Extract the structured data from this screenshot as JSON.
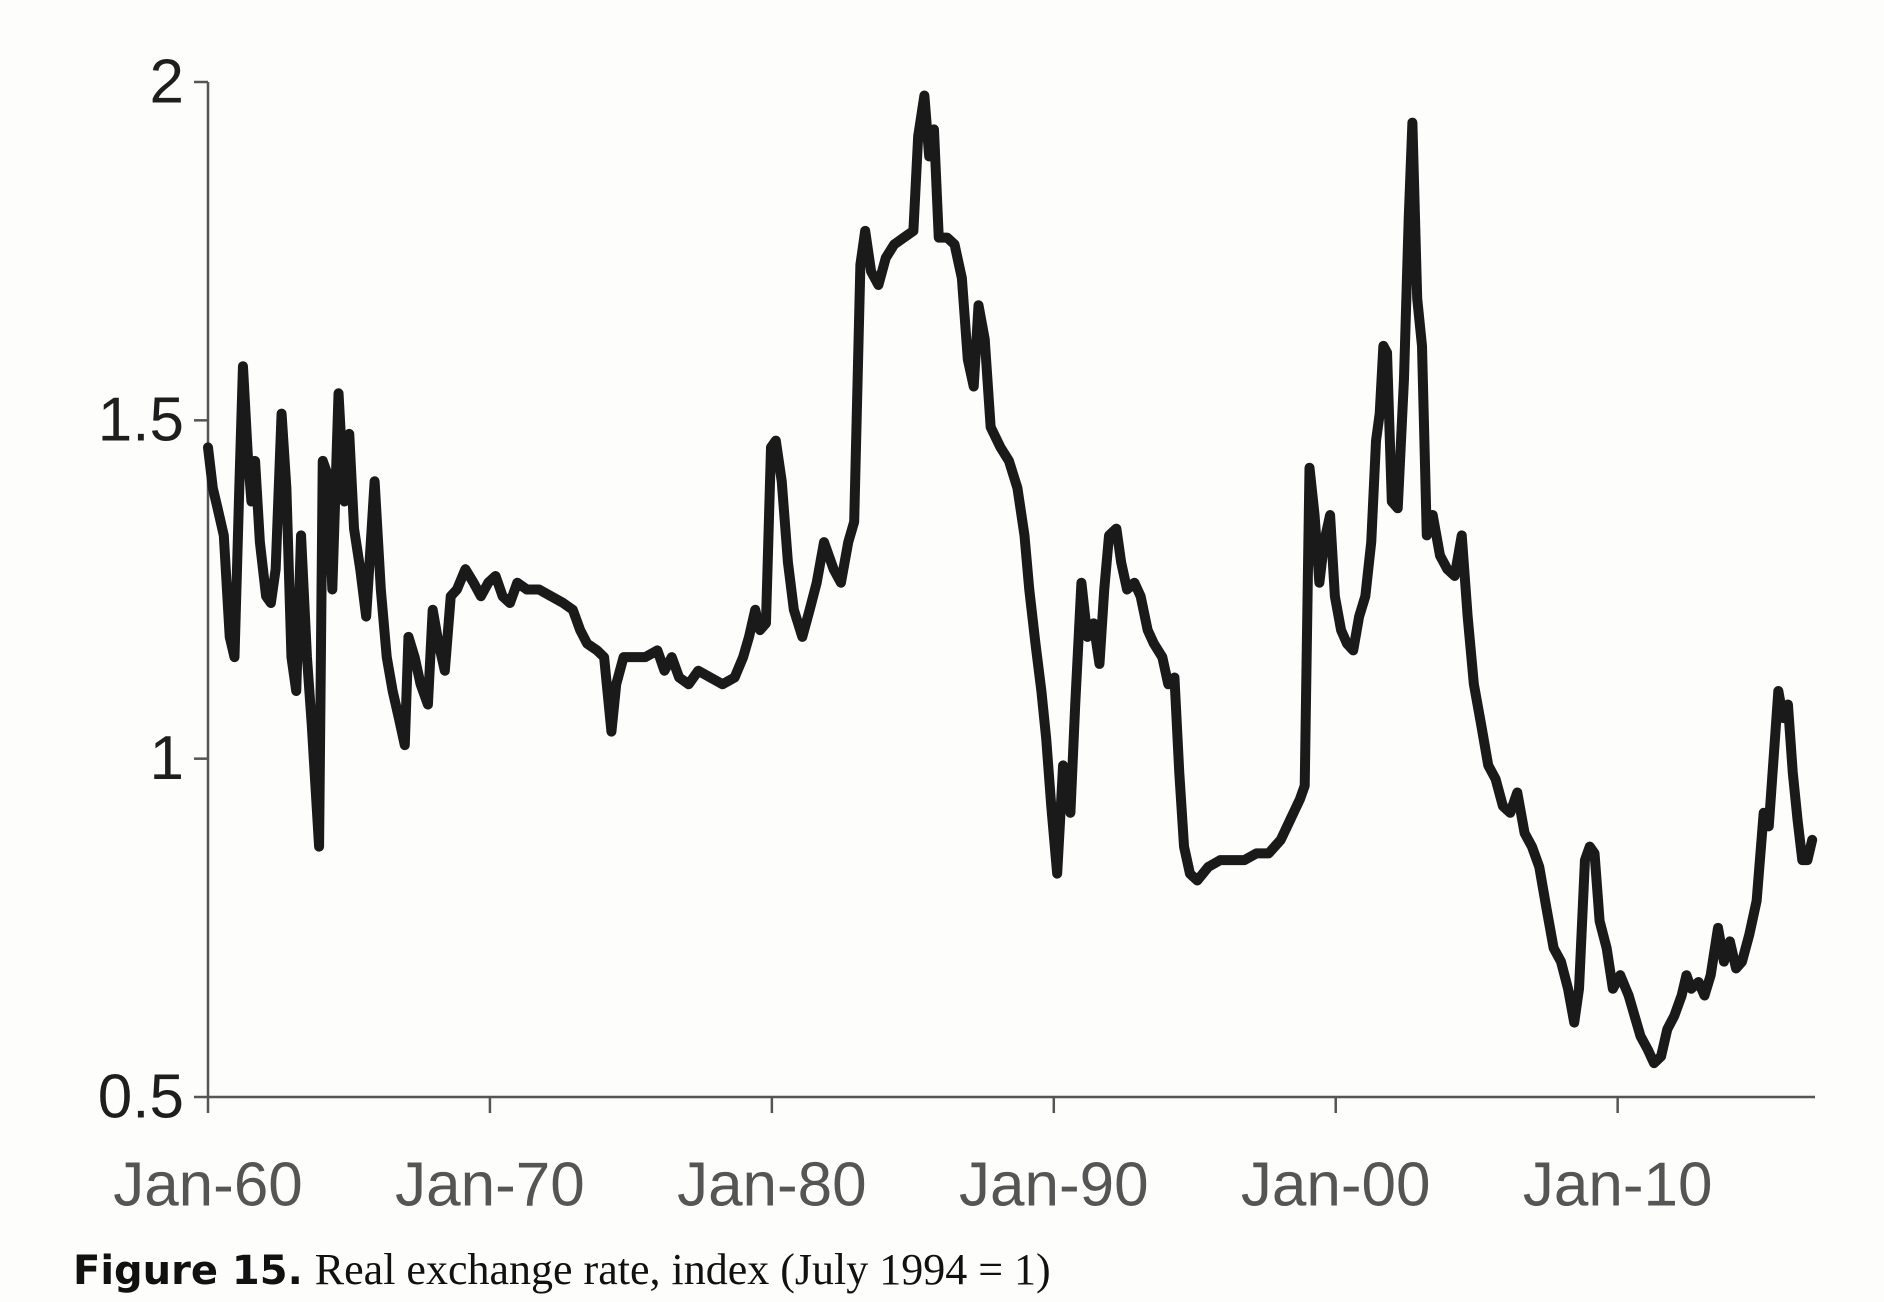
{
  "chart_data": {
    "type": "line",
    "figure_label": "Figure 15.",
    "caption": "Real exchange rate, index (July 1994 = 1)",
    "color": "#1a1a1a",
    "xlim": [
      1960,
      2017
    ],
    "ylim": [
      0.5,
      2
    ],
    "yticks": [
      0.5,
      1,
      1.5,
      2
    ],
    "xticks": [
      {
        "value": 1960,
        "label": "Jan-60"
      },
      {
        "value": 1970,
        "label": "Jan-70"
      },
      {
        "value": 1980,
        "label": "Jan-80"
      },
      {
        "value": 1990,
        "label": "Jan-90"
      },
      {
        "value": 2000,
        "label": "Jan-00"
      },
      {
        "value": 2010,
        "label": "Jan-10"
      }
    ],
    "x": [
      1960.0,
      1960.17,
      1960.34,
      1960.56,
      1960.77,
      1960.94,
      1961.11,
      1961.24,
      1961.41,
      1961.54,
      1961.67,
      1961.84,
      1962.06,
      1962.23,
      1962.4,
      1962.61,
      1962.78,
      1962.96,
      1963.13,
      1963.3,
      1963.51,
      1963.68,
      1963.94,
      1964.07,
      1964.24,
      1964.41,
      1964.63,
      1964.84,
      1965.01,
      1965.18,
      1965.4,
      1965.61,
      1965.91,
      1966.13,
      1966.34,
      1966.55,
      1966.77,
      1966.98,
      1967.11,
      1967.33,
      1967.54,
      1967.8,
      1967.97,
      1968.18,
      1968.4,
      1968.61,
      1968.83,
      1969.13,
      1969.42,
      1969.68,
      1969.94,
      1970.2,
      1970.45,
      1970.71,
      1970.97,
      1971.31,
      1971.74,
      1972.17,
      1972.6,
      1972.94,
      1973.2,
      1973.45,
      1973.8,
      1974.05,
      1974.31,
      1974.48,
      1974.74,
      1975.08,
      1975.51,
      1975.94,
      1976.19,
      1976.45,
      1976.71,
      1977.05,
      1977.39,
      1977.82,
      1978.25,
      1978.68,
      1978.98,
      1979.19,
      1979.41,
      1979.58,
      1979.79,
      1979.97,
      1980.14,
      1980.35,
      1980.57,
      1980.78,
      1981.08,
      1981.34,
      1981.59,
      1981.85,
      1982.19,
      1982.45,
      1982.71,
      1982.92,
      1983.14,
      1983.31,
      1983.52,
      1983.78,
      1984.04,
      1984.34,
      1984.68,
      1985.02,
      1985.19,
      1985.41,
      1985.58,
      1985.75,
      1985.92,
      1986.22,
      1986.48,
      1986.74,
      1986.95,
      1987.16,
      1987.33,
      1987.55,
      1987.76,
      1988.11,
      1988.41,
      1988.71,
      1988.96,
      1989.13,
      1989.35,
      1989.56,
      1989.73,
      1989.91,
      1990.12,
      1990.33,
      1990.59,
      1990.76,
      1990.98,
      1991.19,
      1991.41,
      1991.62,
      1991.79,
      1991.96,
      1992.22,
      1992.39,
      1992.6,
      1992.86,
      1993.08,
      1993.33,
      1993.55,
      1993.85,
      1994.06,
      1994.28,
      1994.45,
      1994.62,
      1994.83,
      1995.09,
      1995.48,
      1995.9,
      1996.33,
      1996.76,
      1997.19,
      1997.62,
      1998.05,
      1998.39,
      1998.73,
      1998.9,
      1999.07,
      1999.25,
      1999.42,
      1999.59,
      1999.8,
      1999.97,
      2000.19,
      2000.4,
      2000.62,
      2000.83,
      2001.05,
      2001.26,
      2001.43,
      2001.56,
      2001.69,
      2001.82,
      2001.99,
      2002.2,
      2002.42,
      2002.59,
      2002.72,
      2002.89,
      2003.06,
      2003.23,
      2003.44,
      2003.7,
      2003.96,
      2004.22,
      2004.47,
      2004.68,
      2004.9,
      2005.16,
      2005.41,
      2005.67,
      2005.93,
      2006.19,
      2006.44,
      2006.7,
      2006.96,
      2007.22,
      2007.47,
      2007.73,
      2007.99,
      2008.24,
      2008.46,
      2008.63,
      2008.84,
      2009.01,
      2009.18,
      2009.36,
      2009.61,
      2009.83,
      2010.09,
      2010.39,
      2010.6,
      2010.81,
      2011.07,
      2011.29,
      2011.54,
      2011.76,
      2012.01,
      2012.27,
      2012.44,
      2012.61,
      2012.87,
      2013.08,
      2013.3,
      2013.56,
      2013.77,
      2013.98,
      2014.2,
      2014.41,
      2014.67,
      2014.93,
      2015.18,
      2015.36,
      2015.53,
      2015.7,
      2015.87,
      2016.04,
      2016.21,
      2016.38,
      2016.55,
      2016.73,
      2016.9
    ],
    "values": [
      1.46,
      1.4,
      1.37,
      1.33,
      1.18,
      1.15,
      1.4,
      1.58,
      1.45,
      1.38,
      1.44,
      1.32,
      1.24,
      1.23,
      1.28,
      1.51,
      1.4,
      1.15,
      1.1,
      1.33,
      1.15,
      1.05,
      0.87,
      1.44,
      1.42,
      1.25,
      1.54,
      1.38,
      1.48,
      1.34,
      1.28,
      1.21,
      1.41,
      1.25,
      1.15,
      1.1,
      1.06,
      1.02,
      1.18,
      1.15,
      1.11,
      1.08,
      1.22,
      1.17,
      1.13,
      1.24,
      1.25,
      1.28,
      1.26,
      1.24,
      1.26,
      1.27,
      1.24,
      1.23,
      1.26,
      1.25,
      1.25,
      1.24,
      1.23,
      1.22,
      1.19,
      1.17,
      1.16,
      1.15,
      1.04,
      1.11,
      1.15,
      1.15,
      1.15,
      1.16,
      1.13,
      1.15,
      1.12,
      1.11,
      1.13,
      1.12,
      1.11,
      1.12,
      1.15,
      1.18,
      1.22,
      1.19,
      1.2,
      1.46,
      1.47,
      1.41,
      1.29,
      1.22,
      1.18,
      1.22,
      1.26,
      1.32,
      1.28,
      1.26,
      1.32,
      1.35,
      1.73,
      1.78,
      1.72,
      1.7,
      1.74,
      1.76,
      1.77,
      1.78,
      1.92,
      1.98,
      1.89,
      1.93,
      1.77,
      1.77,
      1.76,
      1.71,
      1.59,
      1.55,
      1.67,
      1.62,
      1.49,
      1.46,
      1.44,
      1.4,
      1.33,
      1.25,
      1.17,
      1.1,
      1.03,
      0.93,
      0.83,
      0.99,
      0.92,
      1.08,
      1.26,
      1.18,
      1.2,
      1.14,
      1.25,
      1.33,
      1.34,
      1.29,
      1.25,
      1.26,
      1.24,
      1.19,
      1.17,
      1.15,
      1.11,
      1.12,
      0.98,
      0.87,
      0.83,
      0.82,
      0.84,
      0.85,
      0.85,
      0.85,
      0.86,
      0.86,
      0.88,
      0.91,
      0.94,
      0.96,
      1.43,
      1.36,
      1.26,
      1.32,
      1.36,
      1.24,
      1.19,
      1.17,
      1.16,
      1.21,
      1.24,
      1.32,
      1.47,
      1.51,
      1.61,
      1.6,
      1.38,
      1.37,
      1.56,
      1.8,
      1.94,
      1.68,
      1.61,
      1.33,
      1.36,
      1.3,
      1.28,
      1.27,
      1.33,
      1.21,
      1.11,
      1.05,
      0.99,
      0.97,
      0.93,
      0.92,
      0.95,
      0.89,
      0.87,
      0.84,
      0.78,
      0.72,
      0.7,
      0.66,
      0.61,
      0.66,
      0.85,
      0.87,
      0.86,
      0.76,
      0.72,
      0.66,
      0.68,
      0.65,
      0.62,
      0.59,
      0.57,
      0.55,
      0.56,
      0.6,
      0.62,
      0.65,
      0.68,
      0.66,
      0.67,
      0.65,
      0.68,
      0.75,
      0.7,
      0.73,
      0.69,
      0.7,
      0.74,
      0.79,
      0.92,
      0.9,
      1.0,
      1.1,
      1.06,
      1.08,
      0.98,
      0.91,
      0.85,
      0.85,
      0.88
    ]
  }
}
